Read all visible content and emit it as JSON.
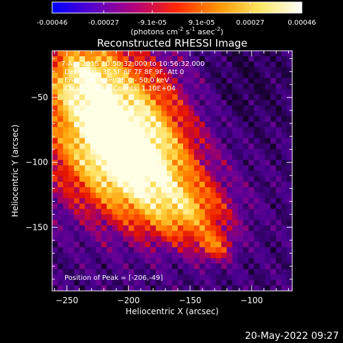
{
  "colorbar": {
    "ticks": [
      "-0.00046",
      "-0.00027",
      "-9.1e-05",
      "9.1e-05",
      "0.00027",
      "0.00046"
    ],
    "tick_values": [
      -0.00046,
      -0.00027,
      -9.1e-05,
      9.1e-05,
      0.00027,
      0.00046
    ],
    "range": [
      -0.00046,
      0.00046
    ],
    "units_label": "(photons cm",
    "units_sup1": "-2",
    "units_mid1": " s",
    "units_sup2": "-1",
    "units_mid2": " asec",
    "units_sup3": "-2",
    "units_end": ")",
    "colormap": [
      "#0000ff",
      "#5a00c8",
      "#b4007a",
      "#ff2800",
      "#ff9600",
      "#ffe864",
      "#ffffff"
    ]
  },
  "chart_data": {
    "type": "heatmap",
    "title": "Reconstructed RHESSI Image",
    "xlabel": "Heliocentric X (arcsec)",
    "ylabel": "Heliocentric Y (arcsec)",
    "xlim": [
      -262,
      -67
    ],
    "ylim": [
      -199,
      -14
    ],
    "xticks": [
      -250,
      -200,
      -150,
      -100
    ],
    "xtick_labels": [
      "−250",
      "−200",
      "−150",
      "−100"
    ],
    "yticks": [
      -50,
      -100,
      -150
    ],
    "ytick_labels": [
      "−50",
      "−100",
      "−150"
    ],
    "annotations": [
      "7-Apr-2015 10:50:32.000 to 10:56:32.000",
      "Detectors: 3F 5F 6F 7F 8F 9F, Att 0",
      "Energy Range: 25.0 - 50.0 keV",
      "Clean     Total Counts: 1.10E+04"
    ],
    "peak_label": "Position of Peak = [-206,-49]",
    "peak": [
      -206,
      -49
    ]
  },
  "timestamp": "20-May-2022 09:27"
}
